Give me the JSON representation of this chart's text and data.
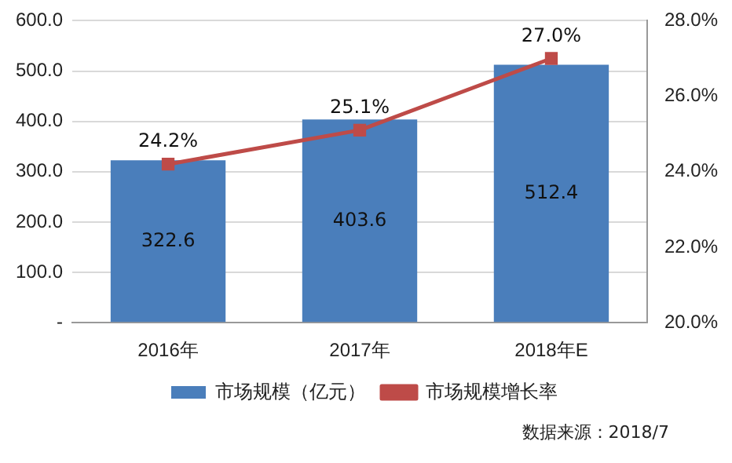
{
  "chart_data": {
    "type": "bar",
    "categories": [
      "2016年",
      "2017年",
      "2018年E"
    ],
    "series": [
      {
        "name": "市场规模（亿元）",
        "color": "#4a7ebb",
        "values": [
          322.6,
          403.6,
          512.4
        ],
        "value_labels": [
          "322.6",
          "403.6",
          "512.4"
        ]
      },
      {
        "name": "市场规模增长率",
        "type": "line",
        "axis": "y2",
        "color": "#be4b48",
        "values": [
          24.2,
          25.1,
          27.0
        ],
        "value_labels": [
          "24.2%",
          "25.1%",
          "27.0%"
        ]
      }
    ],
    "ylim": [
      0,
      600
    ],
    "yticks": [
      {
        "value": 0,
        "label": "-"
      },
      {
        "value": 100,
        "label": "100.0"
      },
      {
        "value": 200,
        "label": "200.0"
      },
      {
        "value": 300,
        "label": "300.0"
      },
      {
        "value": 400,
        "label": "400.0"
      },
      {
        "value": 500,
        "label": "500.0"
      },
      {
        "value": 600,
        "label": "600.0"
      }
    ],
    "y2lim": [
      20,
      28
    ],
    "y2ticks": [
      {
        "value": 20,
        "label": "20.0%"
      },
      {
        "value": 22,
        "label": "22.0%"
      },
      {
        "value": 24,
        "label": "24.0%"
      },
      {
        "value": 26,
        "label": "26.0%"
      },
      {
        "value": 28,
        "label": "28.0%"
      }
    ],
    "grid": "y",
    "legend": "bottom",
    "marker": "square",
    "line_style": "solid",
    "annotations": [
      "数据来源：2018/7"
    ]
  }
}
